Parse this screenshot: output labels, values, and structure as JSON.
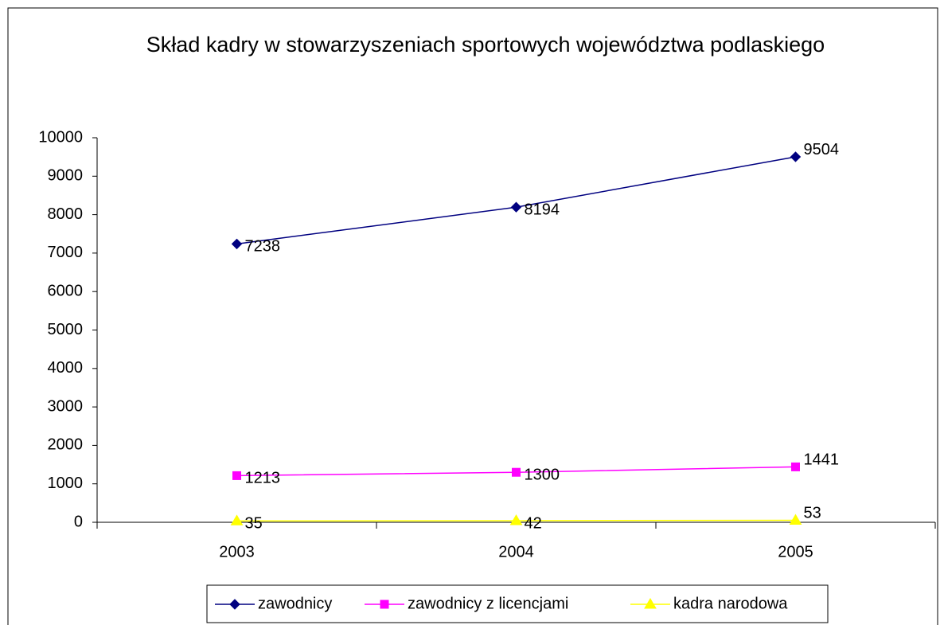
{
  "chart_data": {
    "type": "line",
    "title": "Skład kadry w stowarzyszeniach sportowych województwa podlaskiego",
    "categories": [
      "2003",
      "2004",
      "2005"
    ],
    "series": [
      {
        "name": "zawodnicy",
        "color": "#000080",
        "marker": "diamond",
        "values": [
          7238,
          8194,
          9504
        ]
      },
      {
        "name": "zawodnicy z licencjami",
        "color": "#ff00ff",
        "marker": "square",
        "values": [
          1213,
          1300,
          1441
        ]
      },
      {
        "name": "kadra narodowa",
        "color": "#ffff00",
        "marker": "triangle",
        "values": [
          35,
          42,
          53
        ]
      }
    ],
    "ylim": [
      0,
      10000
    ],
    "yticks": [
      0,
      1000,
      2000,
      3000,
      4000,
      5000,
      6000,
      7000,
      8000,
      9000,
      10000
    ],
    "grid": false,
    "legend": "bottom"
  }
}
